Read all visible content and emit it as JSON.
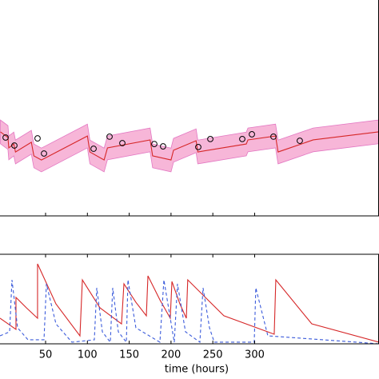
{
  "chart_data": [
    {
      "type": "line",
      "xlim": [
        -4.5,
        448.7
      ],
      "ylim": [
        0,
        1
      ],
      "xticks": [
        50,
        100,
        150,
        200,
        250,
        300
      ],
      "series": [
        {
          "color": "#d62728",
          "x": [
            -4,
            5,
            6,
            12,
            14,
            33,
            36,
            45,
            100,
            103,
            120,
            124,
            175,
            178,
            200,
            203,
            230,
            232,
            290,
            292,
            325,
            328,
            370,
            448
          ],
          "values": [
            0.389,
            0.363,
            0.315,
            0.333,
            0.296,
            0.341,
            0.278,
            0.259,
            0.37,
            0.296,
            0.259,
            0.315,
            0.352,
            0.278,
            0.259,
            0.304,
            0.348,
            0.296,
            0.333,
            0.352,
            0.37,
            0.296,
            0.352,
            0.389
          ]
        }
      ],
      "band": {
        "color": "#f7b6d8",
        "upper": [
          0.444,
          0.418,
          0.37,
          0.388,
          0.351,
          0.396,
          0.333,
          0.314,
          0.425,
          0.351,
          0.314,
          0.37,
          0.407,
          0.333,
          0.314,
          0.359,
          0.403,
          0.351,
          0.388,
          0.407,
          0.425,
          0.351,
          0.407,
          0.444
        ],
        "lower": [
          0.334,
          0.308,
          0.26,
          0.278,
          0.241,
          0.286,
          0.223,
          0.204,
          0.315,
          0.241,
          0.204,
          0.26,
          0.297,
          0.223,
          0.204,
          0.249,
          0.293,
          0.241,
          0.278,
          0.297,
          0.315,
          0.241,
          0.297,
          0.334
        ]
      },
      "points": {
        "x": [
          2.2,
          12.7,
          40.4,
          48.1,
          107.4,
          126.5,
          141.8,
          180,
          190.5,
          232.6,
          247,
          285.2,
          296.7,
          322.5,
          354
        ],
        "values": [
          0.363,
          0.326,
          0.359,
          0.289,
          0.311,
          0.367,
          0.337,
          0.333,
          0.322,
          0.319,
          0.356,
          0.356,
          0.378,
          0.367,
          0.348
        ]
      }
    },
    {
      "type": "line",
      "xlabel": "time (hours)",
      "xlim": [
        -4.5,
        448.7
      ],
      "ylim": [
        0,
        1
      ],
      "xticks": [
        50,
        100,
        150,
        200,
        250,
        300
      ],
      "series": [
        {
          "color": "#d62728",
          "dashed": false,
          "x": [
            -4.5,
            14.6,
            14.6,
            27.1,
            40.4,
            40.4,
            62.4,
            91.1,
            94,
            115,
            140.8,
            143.7,
            158,
            170.5,
            172.4,
            186.7,
            199.1,
            201.1,
            210.6,
            218.3,
            220,
            263.2,
            323.4,
            325.3,
            368.3,
            448.7
          ],
          "values": [
            0.286,
            0.161,
            0.518,
            0.402,
            0.286,
            0.893,
            0.446,
            0.089,
            0.714,
            0.402,
            0.223,
            0.67,
            0.464,
            0.313,
            0.759,
            0.491,
            0.286,
            0.696,
            0.446,
            0.286,
            0.714,
            0.313,
            0.107,
            0.714,
            0.223,
            0.018
          ]
        },
        {
          "color": "#3b5bdb",
          "dashed": true,
          "x": [
            -4.5,
            7,
            9.8,
            16.5,
            29,
            48.1,
            51,
            62.4,
            81.5,
            108.3,
            111.2,
            117.9,
            127.4,
            130.3,
            137,
            146.6,
            148.5,
            158,
            186.7,
            191.5,
            201,
            203.9,
            207.7,
            217.3,
            234.5,
            238.3,
            246,
            251.7,
            299.5,
            301.4,
            315.8,
            448.7
          ],
          "values": [
            0.089,
            0.134,
            0.714,
            0.179,
            0.045,
            0.045,
            0.67,
            0.223,
            0.018,
            0.045,
            0.625,
            0.134,
            0.018,
            0.625,
            0.134,
            0.018,
            0.714,
            0.179,
            0.018,
            0.714,
            0.179,
            0.018,
            0.67,
            0.134,
            0.018,
            0.625,
            0.179,
            0.018,
            0.018,
            0.625,
            0.089,
            0
          ]
        }
      ]
    }
  ]
}
